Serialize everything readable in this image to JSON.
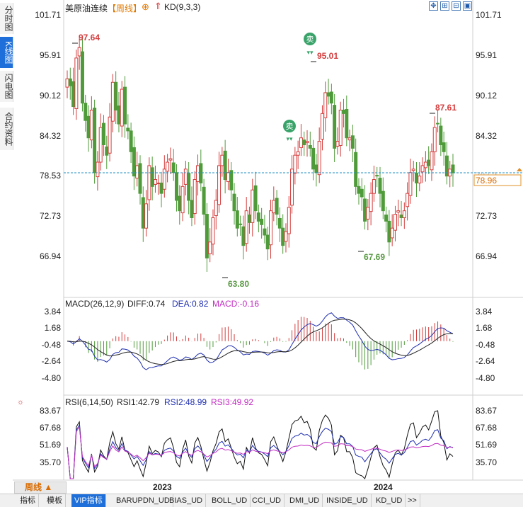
{
  "side_tabs": [
    "分时图",
    "K线图",
    "闪电图",
    "合约资料"
  ],
  "header": {
    "title": "美原油连续",
    "period_tag": "【周线】",
    "indicator": "KD(9,3,3)"
  },
  "main_chart": {
    "y_ticks": [
      "101.71",
      "95.91",
      "90.12",
      "84.32",
      "78.53",
      "72.73",
      "66.94"
    ],
    "y_values": [
      101.71,
      95.91,
      90.12,
      84.32,
      78.53,
      72.73,
      66.94
    ],
    "annotations": {
      "high1": "97.64",
      "high2": "95.01",
      "high3": "87.61",
      "low1": "63.80",
      "low2": "67.69",
      "last_price": "78.96",
      "last_price_value": 78.96,
      "sell_label": "卖"
    },
    "colors": {
      "up": "#d43c3c",
      "down": "#4f9b3a",
      "price_line": "#1e8fc4",
      "sell": "#3aa36a"
    }
  },
  "macd": {
    "title": "MACD(26,12,9)",
    "diff_label": "DIFF:0.74",
    "dea_label": "DEA:0.82",
    "macd_label": "MACD:-0.16",
    "y_ticks": [
      "3.84",
      "1.68",
      "-0.48",
      "-2.64",
      "-4.80"
    ],
    "y_values": [
      3.84,
      1.68,
      -0.48,
      -2.64,
      -4.8
    ]
  },
  "rsi": {
    "title": "RSI(6,14,50)",
    "rsi1_label": "RSI1:42.79",
    "rsi2_label": "RSI2:48.99",
    "rsi3_label": "RSI3:49.92",
    "y_ticks": [
      "83.67",
      "67.68",
      "51.69",
      "35.70"
    ],
    "y_values": [
      83.67,
      67.68,
      51.69,
      35.7
    ]
  },
  "x_axis": {
    "year1": "2023",
    "year2": "2024"
  },
  "period_button": "周线",
  "bottom_tabs": [
    "指标",
    "模板",
    "VIP指标",
    "BARUPDN_UD",
    "BIAS_UD",
    "BOLL_UD",
    "CCI_UD",
    "DMI_UD",
    "INSIDE_UD",
    "KD_UD",
    ">>"
  ],
  "chart_data": {
    "type": "candlestick",
    "title": "美原油连续 周线",
    "series_note": "Approximate weekly closes read from the chart",
    "x_start": "2022-07",
    "closes": [
      92.5,
      91.5,
      88.5,
      95.5,
      97.0,
      89.0,
      86.5,
      84.0,
      88.0,
      79.0,
      80.5,
      85.5,
      83.0,
      81.5,
      87.0,
      92.0,
      88.0,
      86.0,
      91.0,
      86.0,
      85.0,
      82.0,
      78.5,
      80.0,
      76.0,
      71.0,
      74.5,
      80.0,
      77.0,
      78.0,
      77.5,
      76.0,
      79.5,
      80.5,
      81.0,
      79.0,
      75.0,
      73.5,
      77.0,
      79.5,
      75.0,
      72.5,
      78.0,
      80.0,
      77.5,
      73.0,
      66.7,
      69.0,
      72.5,
      75.0,
      80.0,
      81.5,
      78.0,
      79.0,
      76.5,
      73.5,
      71.0,
      71.5,
      68.5,
      73.5,
      71.8,
      76.5,
      73.5,
      72.0,
      71.5,
      70.0,
      68.0,
      73.5,
      75.0,
      73.0,
      71.0,
      68.5,
      70.5,
      74.0,
      79.5,
      81.5,
      82.0,
      84.0,
      83.0,
      83.5,
      82.5,
      79.5,
      79.0,
      83.5,
      87.5,
      90.5,
      90.0,
      89.0,
      82.5,
      83.5,
      88.0,
      87.5,
      84.0,
      84.0,
      82.5,
      77.0,
      76.0,
      75.5,
      72.0,
      74.0,
      76.0,
      78.0,
      78.5,
      76.0,
      73.5,
      72.0,
      69.0,
      71.0,
      73.0,
      73.5,
      72.5,
      73.5,
      76.0,
      79.0,
      79.5,
      77.5,
      78.5,
      80.0,
      80.5,
      80.0,
      82.0,
      85.5,
      86.0,
      83.0,
      82.0,
      78.5,
      79.5,
      78.96
    ],
    "ylim": [
      61.0,
      103.0
    ],
    "highlights": {
      "high1": 97.64,
      "high2": 95.01,
      "high3": 87.61,
      "low1": 63.8,
      "low2": 67.69
    }
  }
}
